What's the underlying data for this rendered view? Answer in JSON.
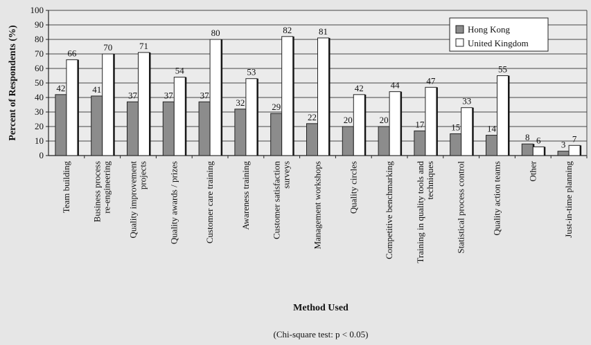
{
  "chart_data": {
    "type": "bar",
    "ylabel": "Percent of Respondents (%)",
    "xlabel": "Method Used",
    "note": "(Chi-square test: p < 0.05)",
    "ylim": [
      0,
      100
    ],
    "yticks": [
      0,
      10,
      20,
      30,
      40,
      50,
      60,
      70,
      80,
      90,
      100
    ],
    "grid": true,
    "legend_position": "top-right",
    "categories": [
      [
        "Team building"
      ],
      [
        "Business process",
        "re-engineering"
      ],
      [
        "Quality improvement",
        "projects"
      ],
      [
        "Quality awards / prizes"
      ],
      [
        "Customer care training"
      ],
      [
        "Awareness training"
      ],
      [
        "Customer satisfaction",
        "surveys"
      ],
      [
        "Management workshops"
      ],
      [
        "Quality circles"
      ],
      [
        "Competitive benchmarking"
      ],
      [
        "Training in quality tools and",
        "techniques"
      ],
      [
        "Statistical process control"
      ],
      [
        "Quality action teams"
      ],
      [
        "Other"
      ],
      [
        "Just-in-time planning"
      ]
    ],
    "series": [
      {
        "name": "Hong Kong",
        "color": "#8c8c8c",
        "values": [
          42,
          41,
          37,
          37,
          37,
          32,
          29,
          22,
          20,
          20,
          17,
          15,
          14,
          8,
          3
        ]
      },
      {
        "name": "United Kingdom",
        "color": "#ffffff",
        "values": [
          66,
          70,
          71,
          54,
          80,
          53,
          82,
          81,
          42,
          44,
          47,
          33,
          55,
          6,
          7
        ]
      }
    ]
  }
}
